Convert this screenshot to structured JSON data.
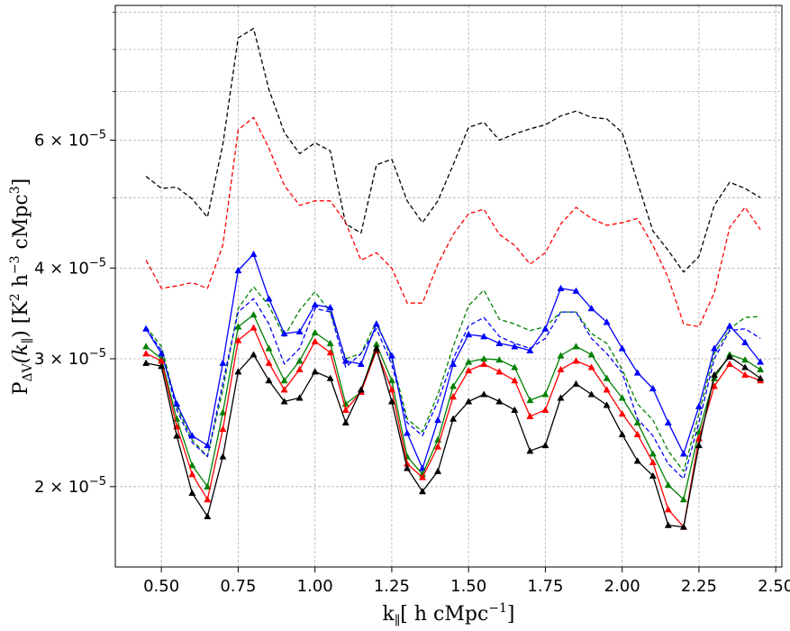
{
  "chart_data": {
    "type": "line",
    "xlabel_main": "k",
    "xlabel_sub": "∥",
    "xlabel_rest": "[ h cMpc",
    "xlabel_sup": "−1",
    "xlabel_end": "]",
    "ylabel_main": "P",
    "ylabel_sub": "ΔV",
    "ylabel_mid": "(k",
    "ylabel_sub2": "∥",
    "ylabel_mid2": ") [K",
    "ylabel_sup1": "2",
    "ylabel_mid3": " h",
    "ylabel_sup2": "−3",
    "ylabel_mid4": " cMpc",
    "ylabel_sup3": "3",
    "ylabel_end": "]",
    "xlim": [
      0.35,
      2.52
    ],
    "ylim": [
      1.55e-05,
      9.2e-05
    ],
    "yscale": "log",
    "grid": true,
    "x_ticks": [
      {
        "value": 0.5,
        "label": "0.50"
      },
      {
        "value": 0.75,
        "label": "0.75"
      },
      {
        "value": 1.0,
        "label": "1.00"
      },
      {
        "value": 1.25,
        "label": "1.25"
      },
      {
        "value": 1.5,
        "label": "1.50"
      },
      {
        "value": 1.75,
        "label": "1.75"
      },
      {
        "value": 2.0,
        "label": "2.00"
      },
      {
        "value": 2.25,
        "label": "2.25"
      },
      {
        "value": 2.5,
        "label": "2.50"
      }
    ],
    "y_ticks": [
      {
        "value": 2e-05,
        "mant": "2",
        "exp": "−5"
      },
      {
        "value": 3e-05,
        "mant": "3",
        "exp": "−5"
      },
      {
        "value": 4e-05,
        "mant": "4",
        "exp": "−5"
      },
      {
        "value": 6e-05,
        "mant": "6",
        "exp": "−5"
      }
    ],
    "y_minor_grid": [
      5e-05,
      7e-05,
      8e-05,
      9e-05
    ],
    "x": [
      0.45,
      0.5,
      0.55,
      0.6,
      0.65,
      0.7,
      0.75,
      0.8,
      0.85,
      0.9,
      0.95,
      1.0,
      1.05,
      1.1,
      1.15,
      1.2,
      1.25,
      1.3,
      1.35,
      1.4,
      1.45,
      1.5,
      1.55,
      1.6,
      1.65,
      1.7,
      1.75,
      1.8,
      1.85,
      1.9,
      1.95,
      2.0,
      2.05,
      2.1,
      2.15,
      2.2,
      2.25,
      2.3,
      2.35,
      2.4,
      2.45
    ],
    "series": [
      {
        "color": "#000000",
        "style": "dashed",
        "values": [
          5.35,
          5.15,
          5.17,
          4.98,
          4.7,
          5.92,
          8.3,
          8.55,
          7.05,
          6.15,
          5.75,
          5.95,
          5.8,
          4.6,
          4.47,
          5.55,
          5.65,
          4.95,
          4.62,
          4.95,
          5.55,
          6.25,
          6.35,
          6.0,
          6.12,
          6.22,
          6.3,
          6.48,
          6.58,
          6.45,
          6.42,
          6.15,
          5.25,
          4.5,
          4.23,
          3.95,
          4.15,
          4.88,
          5.25,
          5.15,
          5.0
        ]
      },
      {
        "color": "#ff0000",
        "style": "dashed",
        "values": [
          4.1,
          3.75,
          3.78,
          3.82,
          3.75,
          4.3,
          6.2,
          6.45,
          5.85,
          5.2,
          4.88,
          4.95,
          4.95,
          4.62,
          4.1,
          4.2,
          4.0,
          3.58,
          3.58,
          4.05,
          4.45,
          4.75,
          4.82,
          4.45,
          4.3,
          4.05,
          4.2,
          4.6,
          4.85,
          4.68,
          4.58,
          4.62,
          4.68,
          4.3,
          3.88,
          3.35,
          3.32,
          3.7,
          4.55,
          4.85,
          4.52
        ]
      },
      {
        "color": "#008000",
        "style": "dashed",
        "values": [
          3.32,
          3.12,
          2.58,
          2.32,
          2.2,
          2.72,
          3.52,
          3.77,
          3.55,
          3.22,
          3.5,
          3.71,
          3.48,
          3.0,
          3.05,
          3.38,
          3.0,
          2.48,
          2.38,
          2.68,
          3.12,
          3.55,
          3.73,
          3.4,
          3.35,
          3.28,
          3.32,
          3.48,
          3.48,
          3.25,
          3.15,
          2.9,
          2.6,
          2.47,
          2.24,
          2.1,
          2.52,
          3.05,
          3.3,
          3.42,
          3.43
        ]
      },
      {
        "color": "#0000ff",
        "style": "dashed",
        "values": [
          3.3,
          3.08,
          2.55,
          2.3,
          2.2,
          2.78,
          3.48,
          3.63,
          3.35,
          2.95,
          3.1,
          3.52,
          3.48,
          2.92,
          3.05,
          3.3,
          2.95,
          2.45,
          2.35,
          2.62,
          3.0,
          3.33,
          3.42,
          3.22,
          3.15,
          3.1,
          3.2,
          3.48,
          3.48,
          3.2,
          3.05,
          2.87,
          2.48,
          2.35,
          2.15,
          2.05,
          2.45,
          3.0,
          3.28,
          3.3,
          3.2
        ]
      },
      {
        "color": "#0000ff",
        "style": "solid",
        "markers": true,
        "values": [
          3.3,
          3.05,
          2.6,
          2.35,
          2.28,
          2.96,
          3.97,
          4.18,
          3.63,
          3.25,
          3.27,
          3.56,
          3.53,
          2.98,
          2.95,
          3.35,
          3.03,
          2.37,
          2.12,
          2.47,
          2.95,
          3.24,
          3.22,
          3.15,
          3.12,
          3.08,
          3.3,
          3.75,
          3.72,
          3.52,
          3.37,
          3.1,
          2.87,
          2.73,
          2.45,
          2.22,
          2.58,
          3.1,
          3.33,
          3.16,
          2.97
        ]
      },
      {
        "color": "#008000",
        "style": "solid",
        "markers": true,
        "values": [
          3.12,
          3.0,
          2.48,
          2.14,
          2.0,
          2.53,
          3.32,
          3.45,
          3.1,
          2.8,
          2.98,
          3.26,
          3.15,
          2.6,
          2.7,
          3.14,
          2.8,
          2.2,
          2.08,
          2.32,
          2.75,
          2.97,
          3.0,
          2.99,
          2.92,
          2.63,
          2.68,
          3.03,
          3.12,
          3.04,
          2.82,
          2.65,
          2.45,
          2.22,
          2.01,
          1.92,
          2.38,
          2.82,
          3.04,
          2.99,
          2.9
        ]
      },
      {
        "color": "#ff0000",
        "style": "solid",
        "markers": true,
        "values": [
          3.05,
          2.98,
          2.42,
          2.08,
          1.92,
          2.4,
          3.18,
          3.31,
          2.96,
          2.72,
          2.9,
          3.17,
          3.06,
          2.55,
          2.7,
          3.08,
          2.72,
          2.15,
          2.06,
          2.27,
          2.66,
          2.89,
          2.95,
          2.88,
          2.8,
          2.5,
          2.55,
          2.9,
          2.98,
          2.92,
          2.72,
          2.52,
          2.36,
          2.16,
          1.86,
          1.76,
          2.33,
          2.75,
          2.95,
          2.85,
          2.8
        ]
      },
      {
        "color": "#000000",
        "style": "solid",
        "markers": true,
        "values": [
          2.96,
          2.93,
          2.35,
          1.96,
          1.82,
          2.2,
          2.88,
          3.04,
          2.8,
          2.62,
          2.65,
          2.88,
          2.82,
          2.45,
          2.72,
          3.1,
          2.62,
          2.12,
          1.97,
          2.1,
          2.48,
          2.62,
          2.68,
          2.62,
          2.55,
          2.24,
          2.28,
          2.65,
          2.77,
          2.68,
          2.59,
          2.36,
          2.17,
          2.07,
          1.77,
          1.76,
          2.28,
          2.85,
          3.02,
          2.92,
          2.82
        ]
      }
    ]
  }
}
